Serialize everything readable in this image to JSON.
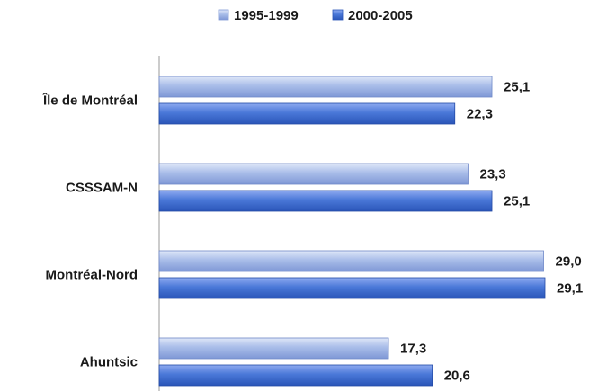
{
  "chart_data": {
    "type": "bar",
    "orientation": "horizontal",
    "categories": [
      "Île de Montréal",
      "CSSSAM-N",
      "Montréal-Nord",
      "Ahuntsic"
    ],
    "series": [
      {
        "name": "1995-1999",
        "values": [
          25.1,
          23.3,
          29.0,
          17.3
        ],
        "labels": [
          "25,1",
          "23,3",
          "29,0",
          "17,3"
        ],
        "color": "#9bb1e3"
      },
      {
        "name": "2000-2005",
        "values": [
          22.3,
          25.1,
          29.1,
          20.6
        ],
        "labels": [
          "22,3",
          "25,1",
          "29,1",
          "20,6"
        ],
        "color": "#3f6fd4"
      }
    ],
    "xlim": [
      0,
      30
    ],
    "legend_position": "top",
    "grid": false
  }
}
